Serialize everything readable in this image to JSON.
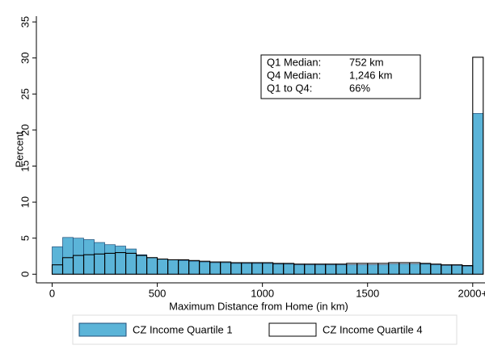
{
  "chart_data": {
    "type": "histogram",
    "xlabel": "Maximum Distance from Home (in km)",
    "ylabel": "Percent",
    "bins": [
      0,
      50,
      100,
      150,
      200,
      250,
      300,
      350,
      400,
      450,
      500,
      550,
      600,
      650,
      700,
      750,
      800,
      850,
      900,
      950,
      1000,
      1050,
      1100,
      1150,
      1200,
      1250,
      1300,
      1350,
      1400,
      1450,
      1500,
      1550,
      1600,
      1650,
      1700,
      1750,
      1800,
      1850,
      1900,
      1950,
      2000,
      2050
    ],
    "series": [
      {
        "name": "CZ Income Quartile 1",
        "color": "#5bb4d8",
        "filled": true,
        "values": [
          3.8,
          5.1,
          5.0,
          4.8,
          4.4,
          4.1,
          3.9,
          3.5,
          2.7,
          2.3,
          2.1,
          2.0,
          1.9,
          1.8,
          1.7,
          1.6,
          1.6,
          1.5,
          1.5,
          1.5,
          1.5,
          1.4,
          1.4,
          1.3,
          1.3,
          1.3,
          1.3,
          1.3,
          1.3,
          1.3,
          1.3,
          1.3,
          1.4,
          1.4,
          1.4,
          1.4,
          1.3,
          1.2,
          1.2,
          1.1,
          22.3
        ]
      },
      {
        "name": "CZ Income Quartile 4",
        "color": "#000000",
        "filled": false,
        "values": [
          1.3,
          2.3,
          2.6,
          2.7,
          2.8,
          2.9,
          3.0,
          2.9,
          2.6,
          2.3,
          2.1,
          2.0,
          2.0,
          1.9,
          1.8,
          1.7,
          1.7,
          1.6,
          1.6,
          1.6,
          1.6,
          1.5,
          1.5,
          1.4,
          1.4,
          1.4,
          1.4,
          1.4,
          1.5,
          1.5,
          1.5,
          1.5,
          1.6,
          1.6,
          1.6,
          1.5,
          1.4,
          1.3,
          1.3,
          1.2,
          30.1
        ]
      }
    ],
    "xlim": [
      -75,
      2070
    ],
    "ylim": [
      -1.2,
      35.8
    ],
    "xticks": [
      0,
      500,
      1000,
      1500,
      {
        "value": 2000,
        "label": "2000+"
      }
    ],
    "yticks": [
      0,
      5,
      10,
      15,
      20,
      25,
      30,
      35
    ],
    "annotation": [
      [
        "Q1 Median:",
        "752 km"
      ],
      [
        "Q4 Median:",
        "1,246 km"
      ],
      [
        "Q1 to Q4:",
        "66%"
      ]
    ],
    "legend": "bottom"
  }
}
